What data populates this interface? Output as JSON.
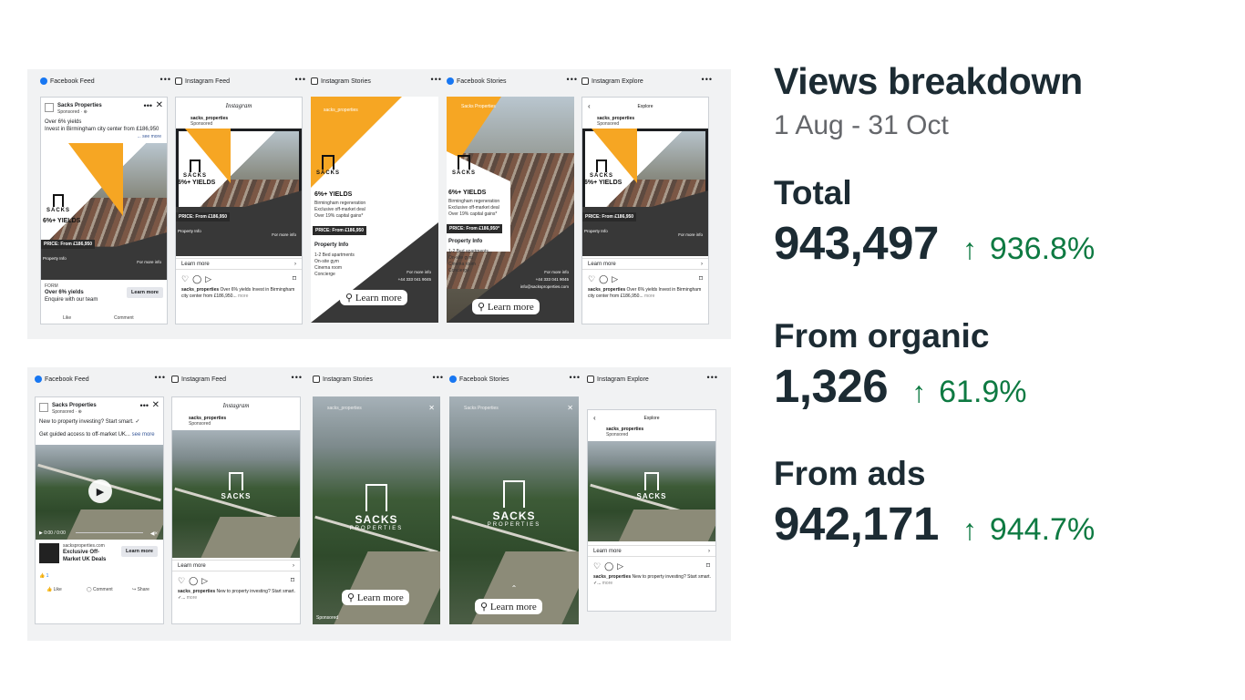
{
  "placements": {
    "facebook_feed": "Facebook Feed",
    "instagram_feed": "Instagram Feed",
    "instagram_stories": "Instagram Stories",
    "facebook_stories": "Facebook Stories",
    "instagram_explore": "Instagram Explore",
    "more": "•••"
  },
  "ad1": {
    "page_name": "Sacks Properties",
    "sponsored": "Sponsored · ⊕",
    "headline": "Over 6% yields",
    "body": "Invest in Birmingham city center from £186,950",
    "see_more": "... see more",
    "yield_title": "6%+ YIELDS",
    "bullets": [
      "Birmingham regeneration",
      "Exclusive off-market deal",
      "Over 19% capital gains*"
    ],
    "price_small": "PRICE: From £186,950",
    "price_story": "PRICE: From £186,950*",
    "property_info": "Property Info",
    "info_items": [
      "1-2 Bed apartments",
      "On-site gym",
      "Cinema room",
      "Concierge"
    ],
    "more_info": "For more info",
    "phone": "+44 333 041 9045",
    "email": "info@sacksproperties.com",
    "brand": "SACKS",
    "brand_sub": "PROPERTIES",
    "form": "FORM",
    "form_headline": "Over 6% yields",
    "form_sub": "Enquire with our team",
    "learn_more": "Learn more",
    "like": "Like",
    "comment": "Comment",
    "ig_account": "sacks_properties",
    "ig_sponsored": "Sponsored",
    "ig_caption_user": "sacks_properties",
    "ig_caption": "Over 6% yields Invest in Birmingham city center from £186,950...",
    "ig_more": "more",
    "story_account": "sacks_properties",
    "learn_more_pill": "Learn more",
    "explore": "Explore",
    "instagram_logo": "Instagram"
  },
  "ad2": {
    "page_name": "Sacks Properties",
    "sponsored": "Sponsored · ⊕",
    "line1": "New to property investing? Start smart. ✓",
    "line2": "Get guided access to off-market UK...",
    "see_more": "see more",
    "video_time": "0:00 / 0:00",
    "link_domain": "sacksproperties.com",
    "link_title": "Exclusive Off-Market UK Deals",
    "learn_more": "Learn more",
    "reactions": "1",
    "like": "Like",
    "comment": "Comment",
    "share": "Share",
    "ig_account": "sacks_properties",
    "ig_sponsored": "Sponsored",
    "ig_caption_user": "sacks_properties",
    "ig_caption": "New to property investing? Start smart. ✓...",
    "ig_more": "more",
    "brand": "SACKS",
    "brand_sub": "PROPERTIES",
    "learn_more_pill": "Learn more",
    "sponsored_tag": "Sponsored",
    "explore": "Explore",
    "instagram_logo": "Instagram"
  },
  "stats": {
    "title": "Views breakdown",
    "date_range": "1 Aug - 31 Oct",
    "total_label": "Total",
    "total_value": "943,497",
    "total_change": "936.8%",
    "organic_label": "From organic",
    "organic_value": "1,326",
    "organic_change": "61.9%",
    "ads_label": "From ads",
    "ads_value": "942,171",
    "ads_change": "944.7%",
    "arrow": "↑",
    "positive_color": "#0e7a42"
  }
}
